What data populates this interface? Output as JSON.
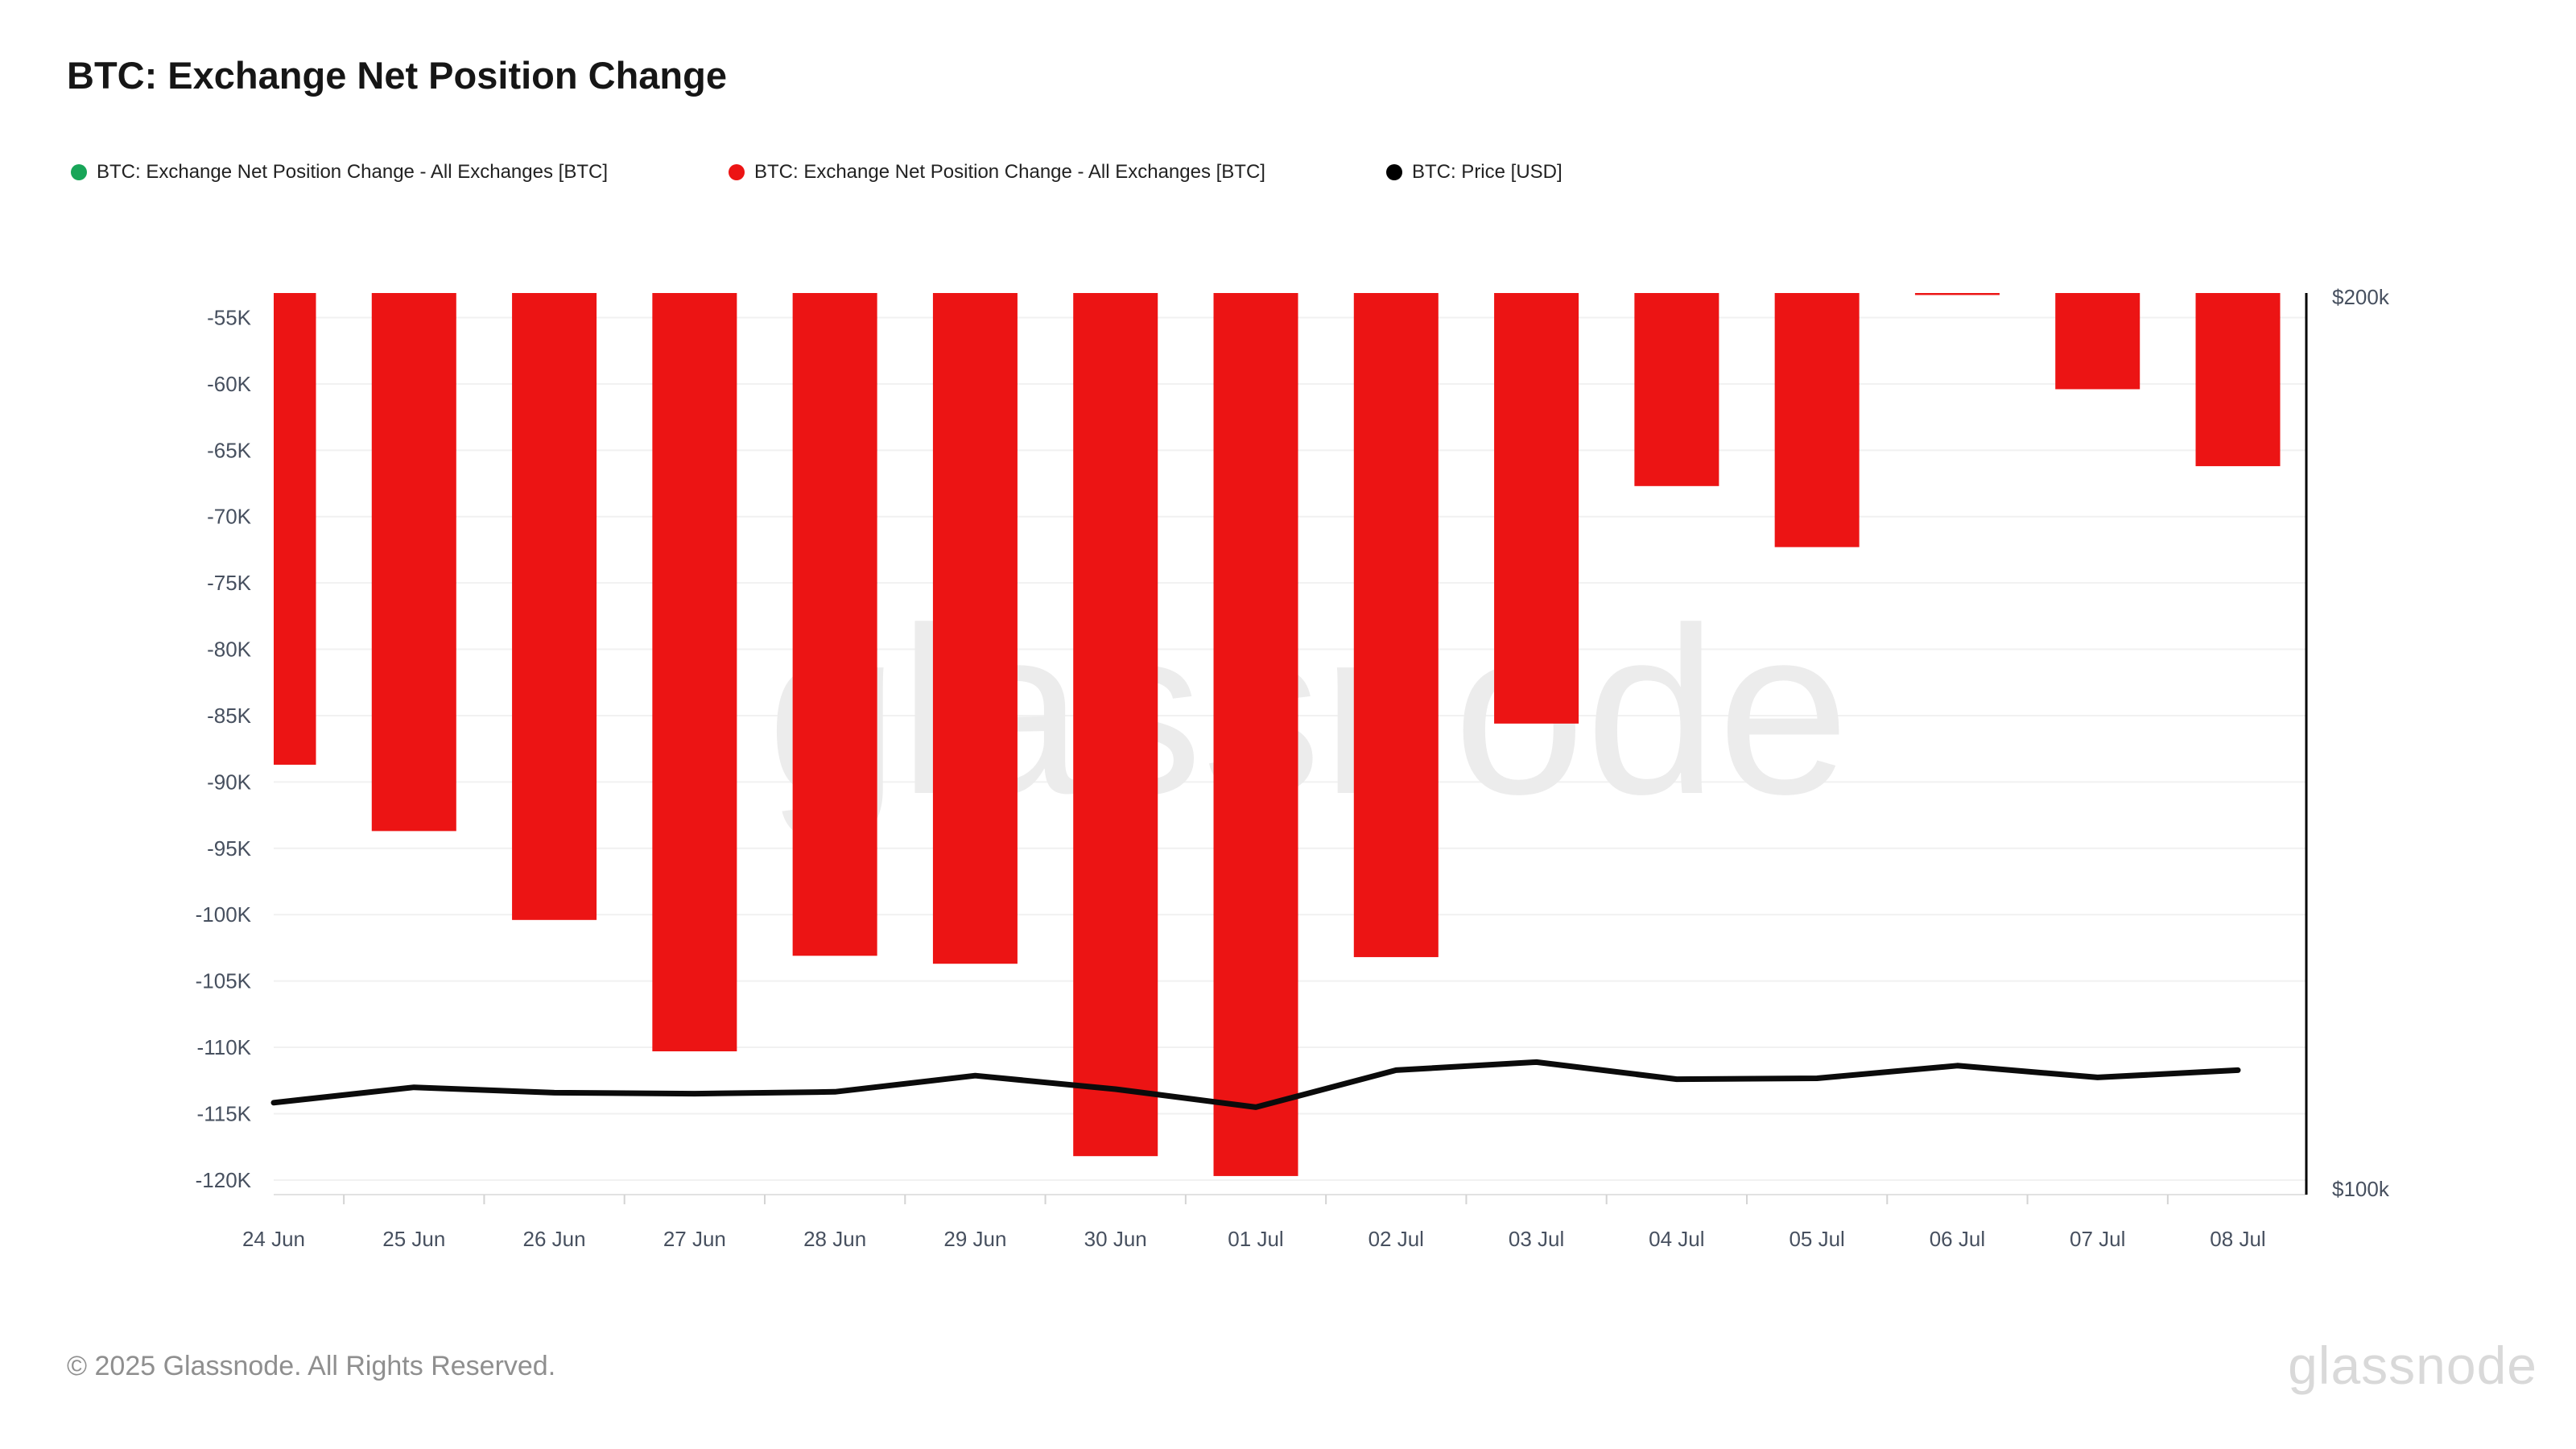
{
  "header": {
    "title": "BTC: Exchange Net Position Change"
  },
  "legend": {
    "items": [
      {
        "label": "BTC: Exchange Net Position Change - All Exchanges [BTC]",
        "color": "#18a558"
      },
      {
        "label": "BTC: Exchange Net Position Change - All Exchanges [BTC]",
        "color": "#ec1414"
      },
      {
        "label": "BTC: Price [USD]",
        "color": "#000000"
      }
    ]
  },
  "watermark": {
    "text": "glassnode",
    "color": "#ececec"
  },
  "footer": {
    "copyright": "© 2025 Glassnode. All Rights Reserved.",
    "brand": "glassnode"
  },
  "chart_data": {
    "type": "bar",
    "title": "BTC: Exchange Net Position Change",
    "categories": [
      "24 Jun",
      "25 Jun",
      "26 Jun",
      "27 Jun",
      "28 Jun",
      "29 Jun",
      "30 Jun",
      "01 Jul",
      "02 Jul",
      "03 Jul",
      "04 Jul",
      "05 Jul",
      "06 Jul",
      "07 Jul",
      "08 Jul"
    ],
    "series": [
      {
        "name": "BTC: Exchange Net Position Change - All Exchanges [BTC]",
        "type": "bar",
        "color": "#ec1414",
        "values": [
          -88700,
          -93700,
          -100400,
          -110300,
          -103100,
          -103700,
          -118200,
          -119700,
          -103200,
          -85600,
          -67700,
          -72300,
          -53300,
          -60400,
          -66200
        ]
      },
      {
        "name": "BTC: Price [USD]",
        "type": "line",
        "color": "#0b0b0b",
        "values": [
          110200,
          111900,
          111300,
          111200,
          111400,
          113200,
          111700,
          109700,
          113800,
          114700,
          112800,
          112900,
          114300,
          113000,
          113800
        ]
      }
    ],
    "left_axis": {
      "tick_labels": [
        "-55K",
        "-60K",
        "-65K",
        "-70K",
        "-75K",
        "-80K",
        "-85K",
        "-90K",
        "-95K",
        "-100K",
        "-105K",
        "-110K",
        "-115K",
        "-120K"
      ],
      "tick_values": [
        -55000,
        -60000,
        -65000,
        -70000,
        -75000,
        -80000,
        -85000,
        -90000,
        -95000,
        -100000,
        -105000,
        -110000,
        -115000,
        -120000
      ]
    },
    "right_axis": {
      "tick_labels": [
        "$200k",
        "$100k"
      ],
      "tick_values": [
        200000,
        100000
      ]
    },
    "bar_axis_visible_range": [
      -121100,
      -53150
    ],
    "price_axis_range": [
      100000,
      200000
    ],
    "grid": "horizontal",
    "legend_position": "top",
    "grid_color": "#f1f1f1",
    "axis_line_color": "#000000",
    "tick_label_color": "#47505f"
  }
}
